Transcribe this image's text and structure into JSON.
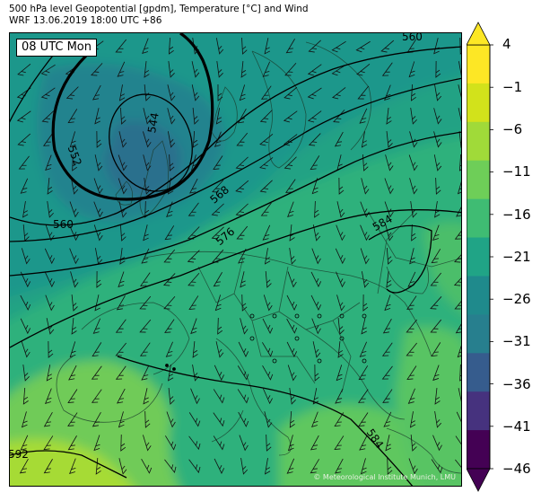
{
  "header": {
    "title_line1": "500 hPa level Geopotential [gpdm], Temperature [°C] and Wind",
    "title_line2": "WRF 13.06.2019 18:00 UTC +86"
  },
  "map": {
    "valid_time_label": "08 UTC Mon",
    "credit": "© Meteorological Institute Munich, LMU",
    "contour_labels": [
      "544",
      "552",
      "560",
      "568",
      "576",
      "584",
      "584",
      "592",
      "560"
    ]
  },
  "colorbar": {
    "tick_labels": [
      "4",
      "−1",
      "−6",
      "−11",
      "−16",
      "−21",
      "−26",
      "−31",
      "−36",
      "−41",
      "−46"
    ],
    "band_colors": [
      "#fde725",
      "#d2e21b",
      "#a0da39",
      "#6ece58",
      "#3fbc73",
      "#20a486",
      "#1f8a8c",
      "#277f8e",
      "#365c8d",
      "#46327e",
      "#440154"
    ],
    "extend_top_color": "#fde725",
    "extend_bottom_color": "#440154"
  }
}
